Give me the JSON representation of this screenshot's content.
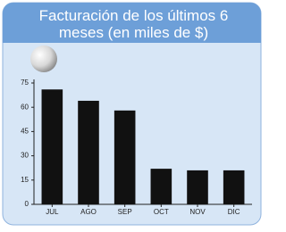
{
  "chart_data": {
    "type": "bar",
    "title": "Facturación de los últimos 6 meses (en miles de $)",
    "categories": [
      "JUL",
      "AGO",
      "SEP",
      "OCT",
      "NOV",
      "DIC"
    ],
    "values": [
      71,
      64,
      58,
      22,
      21,
      21
    ],
    "color": "#111111",
    "ylim": [
      0,
      75
    ],
    "yticks": [
      0,
      15,
      30,
      45,
      60,
      75
    ]
  }
}
